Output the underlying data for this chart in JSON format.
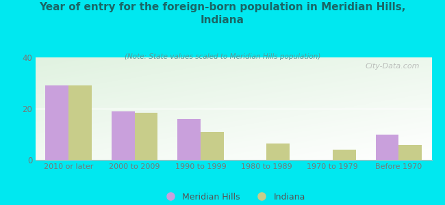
{
  "title": "Year of entry for the foreign-born population in Meridian Hills,\nIndiana",
  "subtitle": "(Note: State values scaled to Meridian Hills population)",
  "categories": [
    "2010 or later",
    "2000 to 2009",
    "1990 to 1999",
    "1980 to 1989",
    "1970 to 1979",
    "Before 1970"
  ],
  "meridian_hills": [
    29,
    19,
    16,
    0,
    0,
    10
  ],
  "indiana": [
    29,
    18.5,
    11,
    6.5,
    4,
    6
  ],
  "meridian_color": "#c9a0dc",
  "indiana_color": "#c8cd8a",
  "bg_color": "#00e8f0",
  "ylim": [
    0,
    40
  ],
  "yticks": [
    0,
    20,
    40
  ],
  "bar_width": 0.35,
  "watermark": "City-Data.com",
  "legend_meridian": "Meridian Hills",
  "legend_indiana": "Indiana",
  "title_color": "#1a6666",
  "subtitle_color": "#5a9999",
  "tick_color": "#777777"
}
